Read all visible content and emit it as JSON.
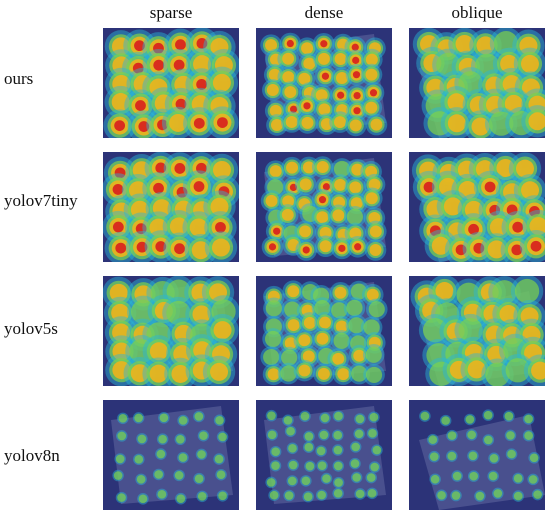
{
  "columns": [
    "sparse",
    "dense",
    "oblique"
  ],
  "rows": [
    {
      "model": "ours",
      "heat": [
        0.85,
        0.75,
        0.6
      ]
    },
    {
      "model": "yolov7tiny",
      "heat": [
        0.9,
        0.7,
        0.8
      ]
    },
    {
      "model": "yolov5s",
      "heat": [
        0.6,
        0.55,
        0.55
      ]
    },
    {
      "model": "yolov8n",
      "heat": [
        0.35,
        0.3,
        0.3
      ]
    }
  ],
  "colors": {
    "background": "#2c3378",
    "tray": "#8088b8",
    "hot": "#d81e1e",
    "warm": "#f6b317",
    "mild": "#7ed14a",
    "cool": "#28b8d8"
  }
}
